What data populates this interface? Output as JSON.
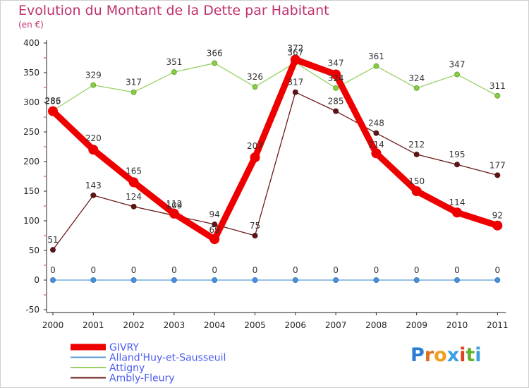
{
  "header": {
    "title": "Evolution du Montant de la Dette par Habitant",
    "subtitle": "(en €)"
  },
  "logo": {
    "text": "Proxiti"
  },
  "chart_data": {
    "type": "line",
    "title": "Evolution du Montant de la Dette par Habitant",
    "ylabel": "(en €)",
    "xlabel": "",
    "x": [
      "2000",
      "2001",
      "2002",
      "2003",
      "2004",
      "2005",
      "2006",
      "2007",
      "2008",
      "2009",
      "2010",
      "2011"
    ],
    "ylim": [
      -50,
      400
    ],
    "yticks": [
      -50,
      0,
      50,
      100,
      150,
      200,
      250,
      300,
      350,
      400
    ],
    "grid": false,
    "legend": "bottom-left",
    "series": [
      {
        "name": "Ambly-Fleury",
        "color": "#6b1a1a",
        "values": [
          51,
          143,
          124,
          109,
          94,
          75,
          317,
          285,
          248,
          212,
          195,
          177
        ],
        "labels": [
          "51",
          "143",
          "124",
          "109",
          "94",
          "75",
          "317",
          "285",
          "248",
          "212",
          "195",
          "177"
        ]
      },
      {
        "name": "Attigny",
        "color": "#99d166",
        "values": [
          286,
          329,
          317,
          351,
          366,
          326,
          367,
          324,
          361,
          324,
          347,
          311
        ],
        "labels": [
          "286",
          "329",
          "317",
          "351",
          "366",
          "326",
          "367",
          "324",
          "361",
          "324",
          "347",
          "311"
        ]
      },
      {
        "name": "Alland'Huy-et-Sausseuil",
        "color": "#5b9bd5",
        "values": [
          0,
          0,
          0,
          0,
          0,
          0,
          0,
          0,
          0,
          0,
          0,
          0
        ],
        "labels": [
          "0",
          "0",
          "0",
          "0",
          "0",
          "0",
          "0",
          "0",
          "0",
          "0",
          "0",
          "0"
        ]
      },
      {
        "name": "GIVRY",
        "color": "#ee0000",
        "values": [
          285,
          220,
          165,
          112,
          69,
          207,
          372,
          347,
          214,
          150,
          114,
          92
        ],
        "labels": [
          "285",
          "220",
          "165",
          "112",
          "69",
          "207",
          "372",
          "347",
          "214",
          "150",
          "114",
          "92"
        ]
      }
    ],
    "legend_order": [
      "GIVRY",
      "Alland'Huy-et-Sausseuil",
      "Attigny",
      "Ambly-Fleury"
    ]
  }
}
